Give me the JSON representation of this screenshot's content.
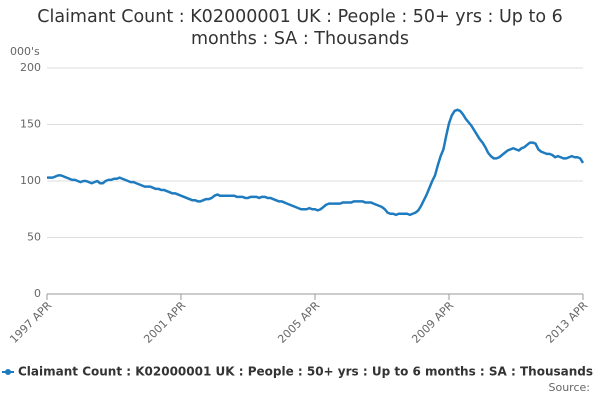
{
  "chart_data": {
    "type": "line",
    "title": "Claimant Count : K02000001 UK : People : 50+ yrs : Up to 6 months : SA : Thousands",
    "y_label": "000's",
    "source": "Source:",
    "categories": [
      "1997 APR",
      null,
      null,
      null,
      null,
      null,
      null,
      null,
      null,
      null,
      null,
      null,
      null,
      null,
      null,
      null,
      null,
      null,
      null,
      null,
      null,
      null,
      null,
      null,
      null,
      null,
      null,
      null,
      null,
      null,
      null,
      null,
      null,
      null,
      null,
      null,
      null,
      null,
      null,
      null,
      null,
      null,
      null,
      null,
      null,
      null,
      null,
      null,
      "2001 APR",
      null,
      null,
      null,
      null,
      null,
      null,
      null,
      null,
      null,
      null,
      null,
      null,
      null,
      null,
      null,
      null,
      null,
      null,
      null,
      null,
      null,
      null,
      null,
      null,
      null,
      null,
      null,
      null,
      null,
      null,
      null,
      null,
      null,
      null,
      null,
      null,
      null,
      null,
      null,
      null,
      null,
      null,
      null,
      null,
      null,
      null,
      null,
      "2005 APR",
      null,
      null,
      null,
      null,
      null,
      null,
      null,
      null,
      null,
      null,
      null,
      null,
      null,
      null,
      null,
      null,
      null,
      null,
      null,
      null,
      null,
      null,
      null,
      null,
      null,
      null,
      null,
      null,
      null,
      null,
      null,
      null,
      null,
      null,
      null,
      null,
      null,
      null,
      null,
      null,
      null,
      null,
      null,
      null,
      null,
      null,
      null,
      "2009 APR",
      null,
      null,
      null,
      null,
      null,
      null,
      null,
      null,
      null,
      null,
      null,
      null,
      null,
      null,
      null,
      null,
      null,
      null,
      null,
      null,
      null,
      null,
      null,
      null,
      null,
      null,
      null,
      null,
      null,
      null,
      null,
      null,
      null,
      null,
      null,
      null,
      null,
      null,
      null,
      null,
      null,
      null,
      null,
      null,
      null,
      null,
      null,
      "2013 APR"
    ],
    "series": [
      {
        "name": "Claimant Count : K02000001 UK : People : 50+ yrs : Up to 6 months : SA : Thousands",
        "color": "#1f7bbf",
        "values": [
          103,
          103,
          103,
          104,
          105,
          105,
          104,
          103,
          102,
          101,
          101,
          100,
          99,
          100,
          100,
          99,
          98,
          99,
          100,
          98,
          98,
          100,
          101,
          101,
          102,
          102,
          103,
          102,
          101,
          100,
          99,
          99,
          98,
          97,
          96,
          95,
          95,
          95,
          94,
          93,
          93,
          92,
          92,
          91,
          90,
          89,
          89,
          88,
          87,
          86,
          85,
          84,
          83,
          83,
          82,
          82,
          83,
          84,
          84,
          85,
          87,
          88,
          87,
          87,
          87,
          87,
          87,
          87,
          86,
          86,
          86,
          85,
          85,
          86,
          86,
          86,
          85,
          86,
          86,
          85,
          85,
          84,
          83,
          82,
          82,
          81,
          80,
          79,
          78,
          77,
          76,
          75,
          75,
          75,
          76,
          75,
          75,
          74,
          75,
          77,
          79,
          80,
          80,
          80,
          80,
          80,
          81,
          81,
          81,
          81,
          82,
          82,
          82,
          82,
          81,
          81,
          81,
          80,
          79,
          78,
          77,
          75,
          72,
          71,
          71,
          70,
          71,
          71,
          71,
          71,
          70,
          71,
          72,
          74,
          78,
          83,
          88,
          94,
          100,
          105,
          114,
          122,
          128,
          140,
          151,
          158,
          162,
          163,
          162,
          159,
          155,
          152,
          149,
          145,
          141,
          137,
          134,
          130,
          125,
          122,
          120,
          120,
          121,
          123,
          125,
          127,
          128,
          129,
          128,
          127,
          129,
          130,
          132,
          134,
          134,
          133,
          128,
          126,
          125,
          124,
          124,
          123,
          121,
          122,
          121,
          120,
          120,
          121,
          122,
          121,
          121,
          120,
          116
        ]
      }
    ],
    "ylim": [
      0,
      200
    ],
    "yticks": [
      0,
      50,
      100,
      150,
      200
    ],
    "grid": true
  }
}
